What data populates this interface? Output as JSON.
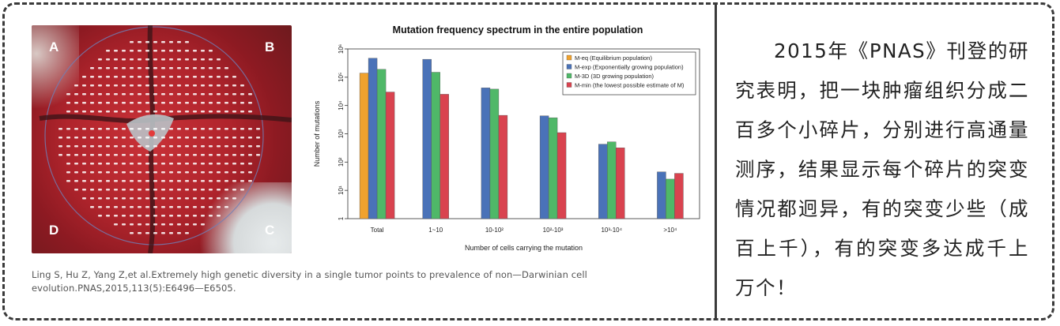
{
  "figure": {
    "photo_labels": [
      "A",
      "B",
      "C",
      "D"
    ],
    "citation": "Ling S, Hu Z, Yang Z,et al.Extremely high genetic diversity in a single tumor points to prevalence of non—Darwinian cell evolution.PNAS,2015,113(5):E6496—E6505."
  },
  "description": "2015年《PNAS》刊登的研究表明，把一块肿瘤组织分成二百多个小碎片，分别进行高通量测序，结果显示每个碎片的突变情况都迥异，有的突变少些（成百上千），有的突变多达成千上万个！",
  "chart_data": {
    "type": "bar",
    "title": "Mutation frequency spectrum in the entire population",
    "xlabel": "Number of cells carrying the mutation",
    "ylabel": "Number of mutations",
    "yscale": "log",
    "ylim": [
      1,
      1000000
    ],
    "y_ticks": [
      "1",
      "10¹",
      "10²",
      "10³",
      "10⁴",
      "10⁵",
      "10⁶"
    ],
    "categories": [
      "Total",
      "1~10",
      "10-10²",
      "10²-10³",
      "10³-10⁴",
      ">10⁴"
    ],
    "legend_position": "top-right",
    "series": [
      {
        "name": "M-eq (Equilibrium population)",
        "color": "#f0a22e",
        "values": [
          140000,
          null,
          null,
          null,
          null,
          null
        ]
      },
      {
        "name": "M-exp (Exponentially growing population)",
        "color": "#4a72b8",
        "values": [
          470000,
          430000,
          42000,
          4300,
          430,
          45
        ]
      },
      {
        "name": "M-3D (3D growing population)",
        "color": "#4fb868",
        "values": [
          190000,
          150000,
          38000,
          3700,
          520,
          25
        ]
      },
      {
        "name": "M-min (the lowest possible estimate of M)",
        "color": "#d9434f",
        "values": [
          30000,
          25000,
          4500,
          1100,
          320,
          40
        ]
      }
    ]
  }
}
